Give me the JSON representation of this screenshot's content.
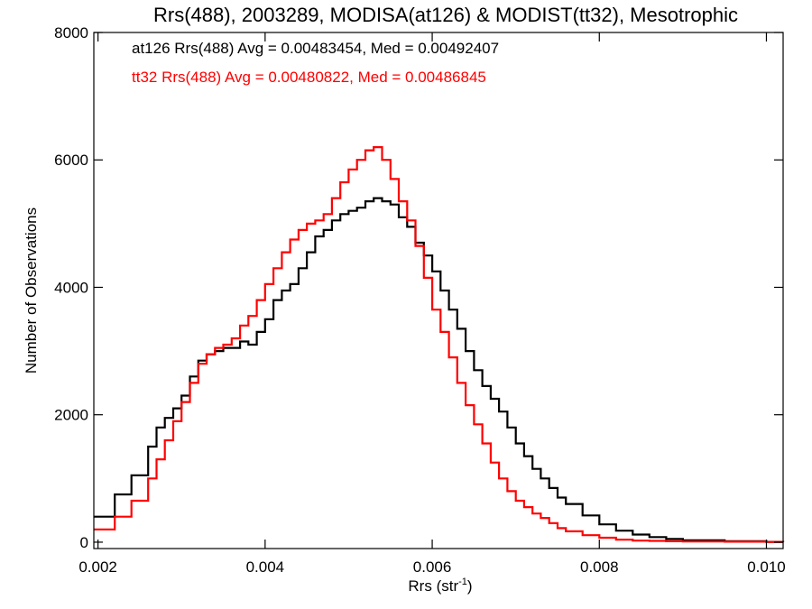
{
  "chart_data": {
    "type": "line",
    "step": true,
    "title": "Rrs(488), 2003289, MODISA(at126) & MODIST(tt32), Mesotrophic",
    "xlabel": "Rrs (str",
    "xlabel_sup": "-1",
    "xlabel_close": ")",
    "ylabel": "Number of Observations",
    "xlim": [
      0.00195,
      0.0102
    ],
    "ylim": [
      -100,
      8000
    ],
    "xticks": [
      0.002,
      0.004,
      0.006,
      0.008,
      0.01
    ],
    "xtick_labels": [
      "0.002",
      "0.004",
      "0.006",
      "0.008",
      "0.010"
    ],
    "yticks": [
      0,
      2000,
      4000,
      6000,
      8000
    ],
    "ytick_labels": [
      "0",
      "2000",
      "4000",
      "6000",
      "8000"
    ],
    "grid": false,
    "legend_placement": "top-left",
    "legend": [
      "at126 Rrs(488) Avg = 0.00483454, Med = 0.00492407",
      "tt32 Rrs(488) Avg = 0.00480822, Med = 0.00486845"
    ],
    "series": [
      {
        "name": "at126",
        "color": "#000000",
        "x": [
          0.00195,
          0.0022,
          0.0024,
          0.0026,
          0.0027,
          0.0028,
          0.0029,
          0.003,
          0.0031,
          0.0032,
          0.0033,
          0.0034,
          0.0035,
          0.0036,
          0.0037,
          0.0038,
          0.0039,
          0.004,
          0.0041,
          0.0042,
          0.0043,
          0.0044,
          0.0045,
          0.0046,
          0.0047,
          0.0048,
          0.0049,
          0.005,
          0.0051,
          0.0052,
          0.0053,
          0.0054,
          0.0055,
          0.0056,
          0.0057,
          0.0058,
          0.0059,
          0.006,
          0.0061,
          0.0062,
          0.0063,
          0.0064,
          0.0065,
          0.0066,
          0.0067,
          0.0068,
          0.0069,
          0.007,
          0.0071,
          0.0072,
          0.0073,
          0.0074,
          0.0075,
          0.0076,
          0.0078,
          0.008,
          0.0082,
          0.0084,
          0.0086,
          0.0088,
          0.009,
          0.0095,
          0.01,
          0.0102
        ],
        "y": [
          400,
          750,
          1050,
          1500,
          1800,
          1950,
          2100,
          2300,
          2600,
          2850,
          2950,
          3000,
          3050,
          3050,
          3150,
          3100,
          3300,
          3500,
          3800,
          3950,
          4050,
          4300,
          4550,
          4800,
          4900,
          5050,
          5150,
          5200,
          5250,
          5350,
          5400,
          5350,
          5300,
          5100,
          4950,
          4700,
          4500,
          4250,
          3950,
          3650,
          3350,
          3000,
          2700,
          2450,
          2250,
          2050,
          1800,
          1550,
          1350,
          1150,
          1000,
          850,
          700,
          600,
          420,
          280,
          180,
          120,
          80,
          50,
          30,
          15,
          5,
          2
        ]
      },
      {
        "name": "tt32",
        "color": "#ff0000",
        "x": [
          0.00195,
          0.0022,
          0.0024,
          0.0026,
          0.0027,
          0.0028,
          0.0029,
          0.003,
          0.0031,
          0.0032,
          0.0033,
          0.0034,
          0.0035,
          0.0036,
          0.0037,
          0.0038,
          0.0039,
          0.004,
          0.0041,
          0.0042,
          0.0043,
          0.0044,
          0.0045,
          0.0046,
          0.0047,
          0.0048,
          0.0049,
          0.005,
          0.0051,
          0.0052,
          0.0053,
          0.0054,
          0.0055,
          0.0056,
          0.0057,
          0.0058,
          0.0059,
          0.006,
          0.0061,
          0.0062,
          0.0063,
          0.0064,
          0.0065,
          0.0066,
          0.0067,
          0.0068,
          0.0069,
          0.007,
          0.0071,
          0.0072,
          0.0073,
          0.0074,
          0.0075,
          0.0076,
          0.0078,
          0.008,
          0.0082,
          0.0084,
          0.0086,
          0.0088,
          0.009,
          0.0095,
          0.01,
          0.0102
        ],
        "y": [
          200,
          400,
          650,
          1000,
          1300,
          1600,
          1900,
          2200,
          2500,
          2800,
          2950,
          3050,
          3100,
          3200,
          3400,
          3550,
          3800,
          4050,
          4300,
          4550,
          4750,
          4900,
          5000,
          5050,
          5150,
          5400,
          5650,
          5850,
          6000,
          6150,
          6200,
          6000,
          5700,
          5350,
          5050,
          4650,
          4150,
          3650,
          3300,
          2900,
          2500,
          2150,
          1850,
          1550,
          1250,
          1000,
          800,
          650,
          550,
          450,
          380,
          300,
          220,
          170,
          110,
          70,
          40,
          25,
          20,
          15,
          10,
          8,
          3,
          2
        ]
      }
    ]
  }
}
